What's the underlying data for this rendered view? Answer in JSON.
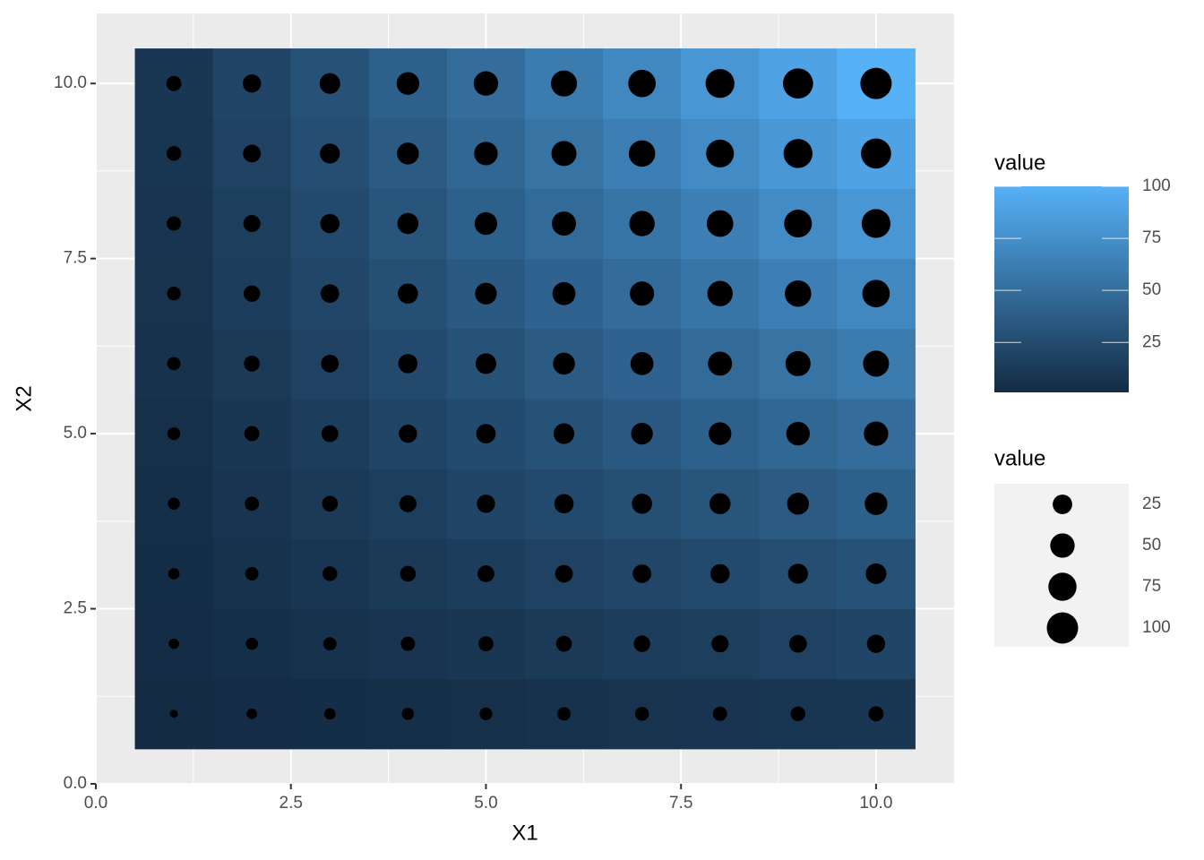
{
  "chart_data": {
    "type": "heatmap",
    "x_label": "X1",
    "y_label": "X2",
    "x": [
      1,
      2,
      3,
      4,
      5,
      6,
      7,
      8,
      9,
      10
    ],
    "y": [
      1,
      2,
      3,
      4,
      5,
      6,
      7,
      8,
      9,
      10
    ],
    "values": [
      [
        1,
        2,
        3,
        4,
        5,
        6,
        7,
        8,
        9,
        10
      ],
      [
        2,
        4,
        6,
        8,
        10,
        12,
        14,
        16,
        18,
        20
      ],
      [
        3,
        6,
        9,
        12,
        15,
        18,
        21,
        24,
        27,
        30
      ],
      [
        4,
        8,
        12,
        16,
        20,
        24,
        28,
        32,
        36,
        40
      ],
      [
        5,
        10,
        15,
        20,
        25,
        30,
        35,
        40,
        45,
        50
      ],
      [
        6,
        12,
        18,
        24,
        30,
        36,
        42,
        48,
        54,
        60
      ],
      [
        7,
        14,
        21,
        28,
        35,
        42,
        49,
        56,
        63,
        70
      ],
      [
        8,
        16,
        24,
        32,
        40,
        48,
        56,
        64,
        72,
        80
      ],
      [
        9,
        18,
        27,
        36,
        45,
        54,
        63,
        72,
        81,
        90
      ],
      [
        10,
        20,
        30,
        40,
        50,
        60,
        70,
        80,
        90,
        100
      ]
    ],
    "xlim": [
      0,
      11
    ],
    "ylim": [
      0,
      11
    ],
    "xticks": [
      {
        "value": 0,
        "label": "0.0"
      },
      2.5,
      {
        "value": 5,
        "label": "5.0"
      },
      7.5,
      {
        "value": 10,
        "label": "10.0"
      }
    ],
    "yticks": [
      {
        "value": 0,
        "label": "0.0"
      },
      2.5,
      {
        "value": 5,
        "label": "5.0"
      },
      7.5,
      {
        "value": 10,
        "label": "10.0"
      }
    ],
    "grid": true,
    "color_low": "#132B43",
    "color_high": "#56B1F7",
    "point_color": "#000000",
    "color_legend_title": "value",
    "color_legend_ticks": [
      25,
      50,
      75,
      100
    ],
    "size_legend_title": "value",
    "size_legend_ticks": [
      25,
      50,
      75,
      100
    ]
  }
}
